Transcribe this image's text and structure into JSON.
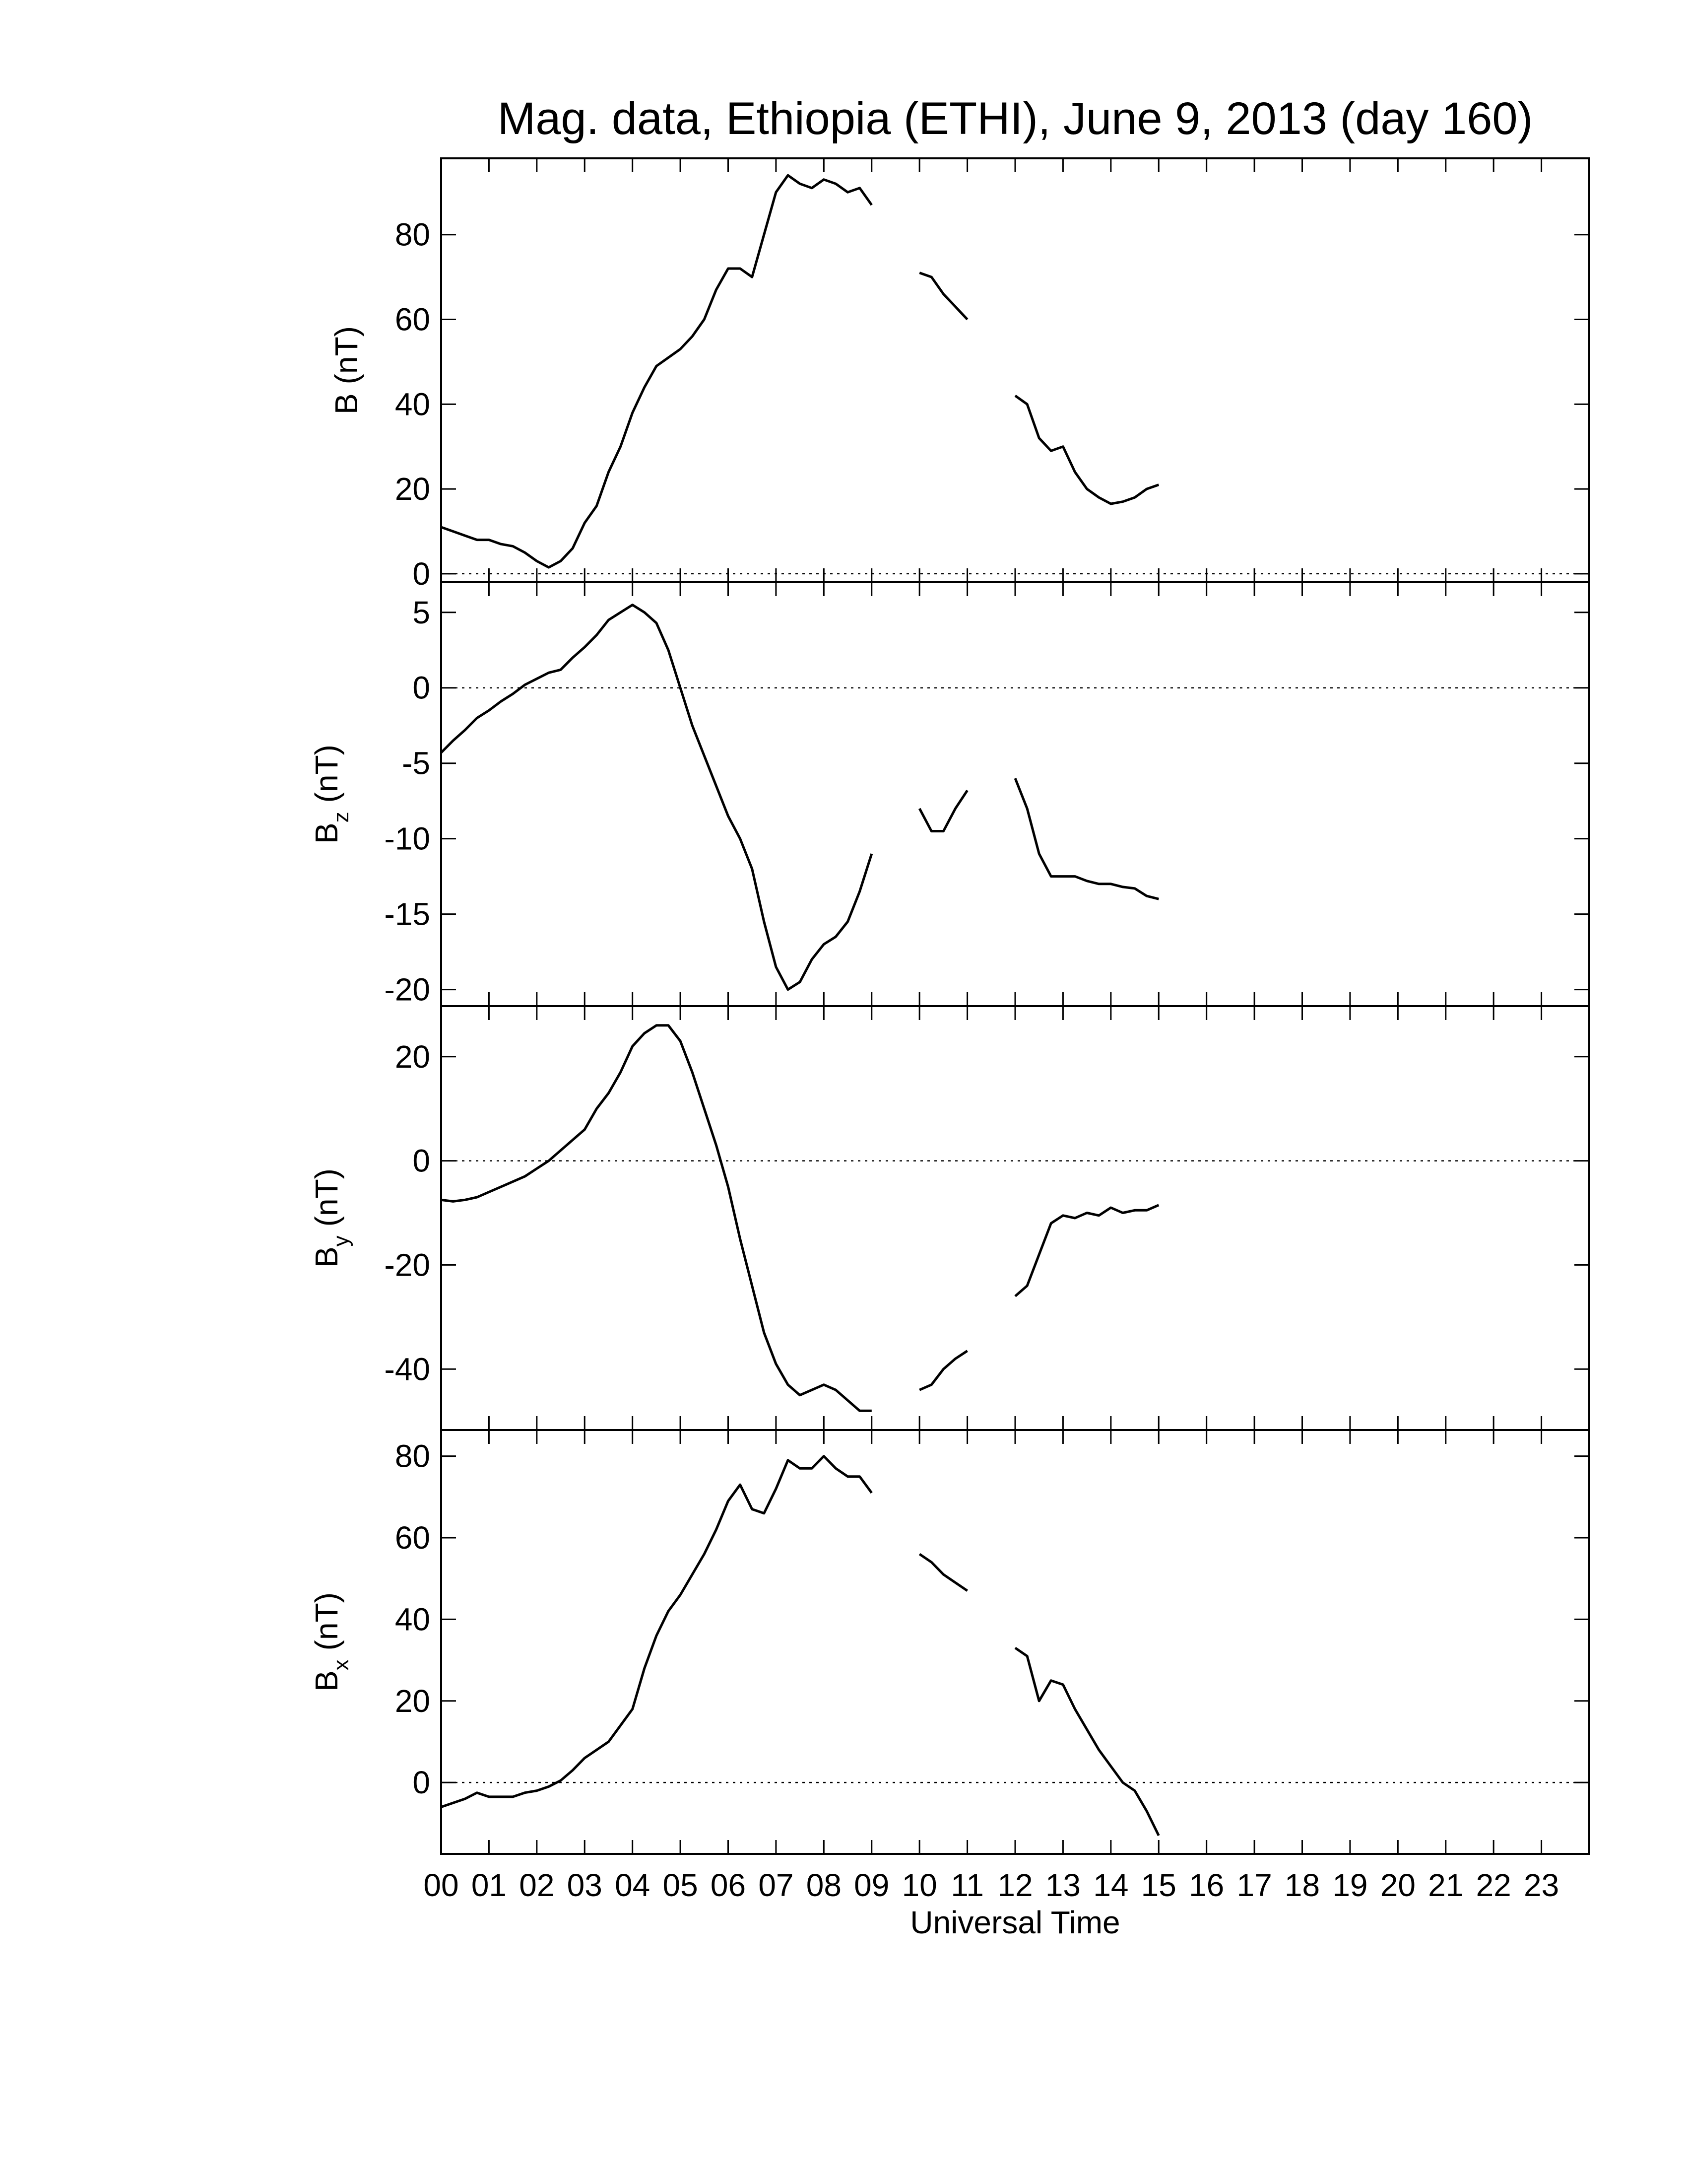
{
  "chart_data": [
    {
      "type": "line",
      "title": "Mag. data, Ethiopia (ETHI), June 9, 2013 (day 160)",
      "ylabel": {
        "base": "B",
        "unit": "(nT)"
      },
      "x": [
        0,
        0.25,
        0.5,
        0.75,
        1,
        1.25,
        1.5,
        1.75,
        2,
        2.25,
        2.5,
        2.75,
        3,
        3.25,
        3.5,
        3.75,
        4,
        4.25,
        4.5,
        4.75,
        5,
        5.25,
        5.5,
        5.75,
        6,
        6.25,
        6.5,
        6.75,
        7,
        7.25,
        7.5,
        7.75,
        8,
        8.25,
        8.5,
        8.75,
        9,
        9.25,
        9.5,
        9.75,
        10,
        10.25,
        10.5,
        10.75,
        11,
        11.25,
        11.5,
        11.75,
        12,
        12.25,
        12.5,
        12.75,
        13,
        13.25,
        13.5,
        13.75,
        14,
        14.25,
        14.5,
        14.75,
        15
      ],
      "values": [
        11,
        10,
        9,
        8,
        8,
        7,
        6.5,
        5,
        3,
        1.5,
        3,
        6,
        12,
        16,
        24,
        30,
        38,
        44,
        49,
        51,
        53,
        56,
        60,
        67,
        72,
        72,
        70,
        80,
        90,
        94,
        92,
        91,
        93,
        92,
        90,
        91,
        87,
        null,
        null,
        null,
        71,
        70,
        66,
        63,
        60,
        null,
        null,
        null,
        42,
        40,
        32,
        29,
        30,
        24,
        20,
        18,
        16.5,
        17,
        18,
        20,
        21
      ],
      "color": "#000000",
      "xlim": [
        0,
        24
      ],
      "ylim": [
        -2,
        98
      ],
      "yticks": [
        0,
        20,
        40,
        60,
        80
      ],
      "zero_line": true
    },
    {
      "type": "line",
      "ylabel": {
        "base": "B",
        "sub": "z",
        "unit": "(nT)"
      },
      "x": [
        0,
        0.25,
        0.5,
        0.75,
        1,
        1.25,
        1.5,
        1.75,
        2,
        2.25,
        2.5,
        2.75,
        3,
        3.25,
        3.5,
        3.75,
        4,
        4.25,
        4.5,
        4.75,
        5,
        5.25,
        5.5,
        5.75,
        6,
        6.25,
        6.5,
        6.75,
        7,
        7.25,
        7.5,
        7.75,
        8,
        8.25,
        8.5,
        8.75,
        9,
        9.25,
        9.5,
        9.75,
        10,
        10.25,
        10.5,
        10.75,
        11,
        11.25,
        11.5,
        11.75,
        12,
        12.25,
        12.5,
        12.75,
        13,
        13.25,
        13.5,
        13.75,
        14,
        14.25,
        14.5,
        14.75,
        15
      ],
      "values": [
        -4.3,
        -3.5,
        -2.8,
        -2.0,
        -1.5,
        -0.9,
        -0.4,
        0.2,
        0.6,
        1.0,
        1.2,
        2.0,
        2.7,
        3.5,
        4.5,
        5.0,
        5.5,
        5.0,
        4.3,
        2.5,
        0,
        -2.5,
        -4.5,
        -6.5,
        -8.5,
        -10,
        -12,
        -15.5,
        -18.5,
        -20,
        -19.5,
        -18,
        -17,
        -16.5,
        -15.5,
        -13.5,
        -11,
        null,
        null,
        null,
        -8,
        -9.5,
        -9.5,
        -8,
        -6.8,
        null,
        null,
        null,
        -6,
        -8,
        -11,
        -12.5,
        -12.5,
        -12.5,
        -12.8,
        -13,
        -13,
        -13.2,
        -13.3,
        -13.8,
        -14
      ],
      "color": "#000000",
      "xlim": [
        0,
        24
      ],
      "ylim": [
        -21.1,
        7.0
      ],
      "yticks": [
        5,
        0,
        -5,
        -10,
        -15,
        -20
      ],
      "zero_line": true
    },
    {
      "type": "line",
      "ylabel": {
        "base": "B",
        "sub": "y",
        "unit": "(nT)"
      },
      "x": [
        0,
        0.25,
        0.5,
        0.75,
        1,
        1.25,
        1.5,
        1.75,
        2,
        2.25,
        2.5,
        2.75,
        3,
        3.25,
        3.5,
        3.75,
        4,
        4.25,
        4.5,
        4.75,
        5,
        5.25,
        5.5,
        5.75,
        6,
        6.25,
        6.5,
        6.75,
        7,
        7.25,
        7.5,
        7.75,
        8,
        8.25,
        8.5,
        8.75,
        9,
        9.25,
        9.5,
        9.75,
        10,
        10.25,
        10.5,
        10.75,
        11,
        11.25,
        11.5,
        11.75,
        12,
        12.25,
        12.5,
        12.75,
        13,
        13.25,
        13.5,
        13.75,
        14,
        14.25,
        14.5,
        14.75,
        15
      ],
      "values": [
        -7.5,
        -7.8,
        -7.5,
        -7,
        -6,
        -5,
        -4,
        -3,
        -1.5,
        0,
        2,
        4,
        6,
        10,
        13,
        17,
        22,
        24.5,
        26,
        26,
        23,
        17,
        10,
        3,
        -5,
        -15,
        -24,
        -33,
        -39,
        -43,
        -45,
        -44,
        -43,
        -44,
        -46,
        -48,
        -48,
        null,
        null,
        null,
        -44,
        -43,
        -40,
        -38,
        -36.5,
        null,
        null,
        null,
        -26,
        -24,
        -18,
        -12,
        -10.5,
        -11,
        -10,
        -10.5,
        -9,
        -10,
        -9.5,
        -9.5,
        -8.5
      ],
      "color": "#000000",
      "xlim": [
        0,
        24
      ],
      "ylim": [
        -51.7,
        29.7
      ],
      "yticks": [
        20,
        0,
        -20,
        -40
      ],
      "zero_line": true
    },
    {
      "type": "line",
      "ylabel": {
        "base": "B",
        "sub": "x",
        "unit": "(nT)"
      },
      "xlabel": "Universal Time",
      "x": [
        0,
        0.25,
        0.5,
        0.75,
        1,
        1.25,
        1.5,
        1.75,
        2,
        2.25,
        2.5,
        2.75,
        3,
        3.25,
        3.5,
        3.75,
        4,
        4.25,
        4.5,
        4.75,
        5,
        5.25,
        5.5,
        5.75,
        6,
        6.25,
        6.5,
        6.75,
        7,
        7.25,
        7.5,
        7.75,
        8,
        8.25,
        8.5,
        8.75,
        9,
        9.25,
        9.5,
        9.75,
        10,
        10.25,
        10.5,
        10.75,
        11,
        11.25,
        11.5,
        11.75,
        12,
        12.25,
        12.5,
        12.75,
        13,
        13.25,
        13.5,
        13.75,
        14,
        14.25,
        14.5,
        14.75,
        15
      ],
      "values": [
        -6,
        -5,
        -4,
        -2.5,
        -3.5,
        -3.5,
        -3.5,
        -2.5,
        -2,
        -1,
        0.5,
        3,
        6,
        8,
        10,
        14,
        18,
        28,
        36,
        42,
        46,
        51,
        56,
        62,
        69,
        73,
        67,
        66,
        72,
        79,
        77,
        77,
        80,
        77,
        75,
        75,
        71,
        null,
        null,
        null,
        56,
        54,
        51,
        49,
        47,
        null,
        null,
        null,
        33,
        31,
        20,
        25,
        24,
        18,
        13,
        8,
        4,
        0,
        -2,
        -7,
        -13
      ],
      "color": "#000000",
      "xlim": [
        0,
        24
      ],
      "ylim": [
        -17.5,
        86.4
      ],
      "yticks": [
        80,
        60,
        40,
        20,
        0
      ],
      "zero_line": true,
      "xticks": [
        {
          "value": 0,
          "label": "00"
        },
        {
          "value": 1,
          "label": "01"
        },
        {
          "value": 2,
          "label": "02"
        },
        {
          "value": 3,
          "label": "03"
        },
        {
          "value": 4,
          "label": "04"
        },
        {
          "value": 5,
          "label": "05"
        },
        {
          "value": 6,
          "label": "06"
        },
        {
          "value": 7,
          "label": "07"
        },
        {
          "value": 8,
          "label": "08"
        },
        {
          "value": 9,
          "label": "09"
        },
        10,
        11,
        12,
        13,
        14,
        15,
        16,
        17,
        18,
        19,
        20,
        21,
        22,
        23
      ]
    }
  ]
}
